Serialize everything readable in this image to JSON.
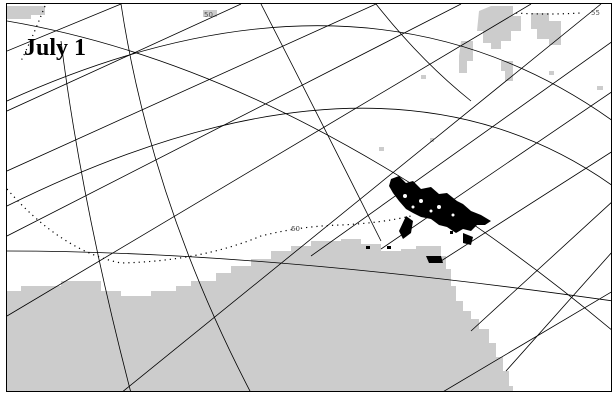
{
  "map": {
    "date_label": "July 1",
    "contour_label_top": "50",
    "contour_label_mid": "60",
    "contour_label_right": "55",
    "colors": {
      "land": "#cccccc",
      "grid": "#000000",
      "ice": "#000000",
      "contour": "#000000",
      "background": "#ffffff"
    }
  }
}
